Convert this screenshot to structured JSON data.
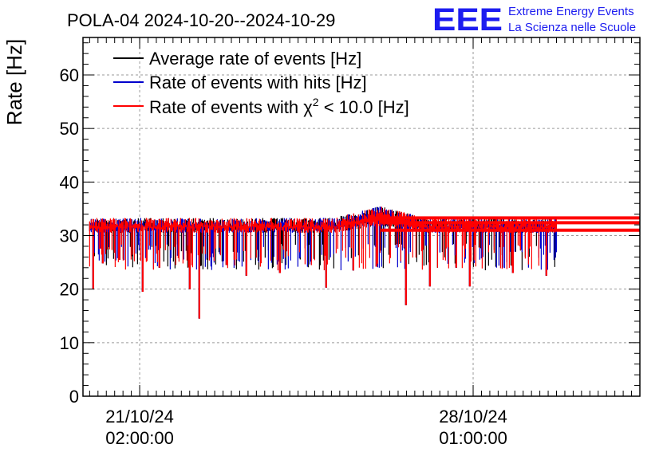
{
  "chart_data": {
    "type": "line",
    "title": "POLA-04 2024-10-20--2024-10-29",
    "ylabel": "Rate [Hz]",
    "xlabel": "",
    "ylim": [
      0,
      67
    ],
    "yticks": [
      0,
      10,
      20,
      30,
      40,
      50,
      60
    ],
    "grid": true,
    "legend_position": "top-left",
    "xlim_days": [
      -0.85,
      7.5
    ],
    "xticks": [
      {
        "day": 0.0,
        "date": "21/10/24",
        "time": "02:00:00"
      },
      {
        "day": 5.0,
        "date": "28/10/24",
        "time": "01:00:00"
      }
    ],
    "series": [
      {
        "name": "Average rate of events [Hz]",
        "color": "#000000",
        "band": [
          30.5,
          33.3
        ]
      },
      {
        "name": "Rate of events with hits [Hz]",
        "color": "#0000cc",
        "band": [
          30.5,
          33.3
        ]
      },
      {
        "name": "Rate of events with χ2 < 10.0 [Hz]",
        "color": "#ff0000",
        "band": [
          30.5,
          33.3
        ]
      }
    ],
    "legend_entries": {
      "avg": "Average rate of events [Hz]",
      "hits": "Rate of events with hits [Hz]",
      "chi_prefix": "Rate of events with ",
      "chi_symbol": "χ",
      "chi_exp": "2",
      "chi_suffix": " < 10.0 [Hz]"
    },
    "data_range_days": [
      -0.75,
      6.25
    ],
    "trailing_levels": [
      {
        "value": 33.3
      },
      {
        "value": 32.4
      },
      {
        "value": 31.0
      }
    ],
    "dips": [
      {
        "day": -0.7,
        "value": 20.0
      },
      {
        "day": -0.55,
        "value": 24.8
      },
      {
        "day": -0.3,
        "value": 25.5
      },
      {
        "day": 0.05,
        "value": 19.5
      },
      {
        "day": 0.3,
        "value": 24.0
      },
      {
        "day": 0.75,
        "value": 20.0
      },
      {
        "day": 0.9,
        "value": 14.5
      },
      {
        "day": 1.3,
        "value": 24.5
      },
      {
        "day": 1.6,
        "value": 22.5
      },
      {
        "day": 2.1,
        "value": 23.0
      },
      {
        "day": 2.8,
        "value": 20.3
      },
      {
        "day": 3.2,
        "value": 23.5
      },
      {
        "day": 3.55,
        "value": 24.2
      },
      {
        "day": 4.0,
        "value": 17.0
      },
      {
        "day": 4.35,
        "value": 20.5
      },
      {
        "day": 4.75,
        "value": 24.0
      },
      {
        "day": 4.95,
        "value": 20.5
      },
      {
        "day": 5.6,
        "value": 23.0
      },
      {
        "day": 6.1,
        "value": 22.5
      }
    ]
  },
  "logo": {
    "mark": "EEE",
    "line1": "Extreme Energy Events",
    "line2": "La Scienza nelle Scuole",
    "color": "#1c1cf0"
  }
}
